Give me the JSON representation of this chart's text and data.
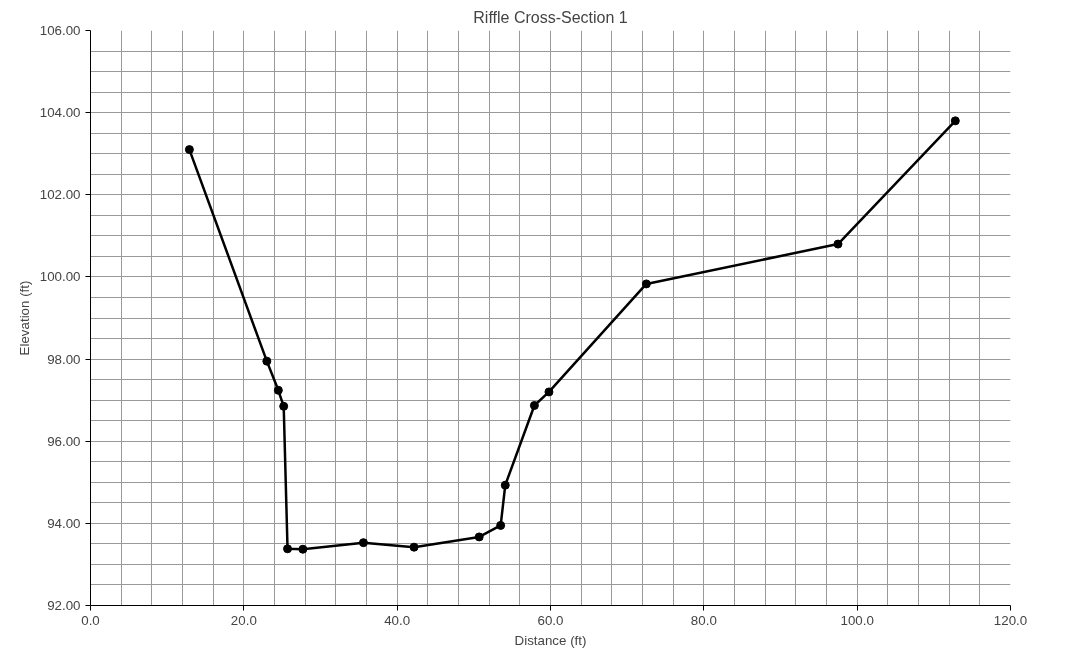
{
  "chart_data": {
    "type": "line",
    "title": "Riffle Cross-Section 1",
    "xlabel": "Distance (ft)",
    "ylabel": "Elevation (ft)",
    "x": [
      12.9,
      23.0,
      24.5,
      25.2,
      25.7,
      27.7,
      35.6,
      42.2,
      50.7,
      53.5,
      54.1,
      57.9,
      59.8,
      72.5,
      97.5,
      112.8
    ],
    "series": [
      {
        "color": "#000000",
        "values": [
          103.1,
          97.95,
          97.24,
          96.85,
          93.38,
          93.37,
          93.53,
          93.42,
          93.67,
          93.95,
          94.93,
          96.87,
          97.2,
          99.83,
          100.8,
          103.8
        ]
      }
    ],
    "xlim": [
      0,
      120
    ],
    "ylim": [
      92,
      106
    ],
    "xticks": [
      {
        "value": 0,
        "label": "0.0"
      },
      {
        "value": 4,
        "label": null
      },
      {
        "value": 8,
        "label": null
      },
      {
        "value": 12,
        "label": null
      },
      {
        "value": 16,
        "label": null
      },
      {
        "value": 20,
        "label": "20.0"
      },
      {
        "value": 24,
        "label": null
      },
      {
        "value": 28,
        "label": null
      },
      {
        "value": 32,
        "label": null
      },
      {
        "value": 36,
        "label": null
      },
      {
        "value": 40,
        "label": "40.0"
      },
      {
        "value": 44,
        "label": null
      },
      {
        "value": 48,
        "label": null
      },
      {
        "value": 52,
        "label": null
      },
      {
        "value": 56,
        "label": null
      },
      {
        "value": 60,
        "label": "60.0"
      },
      {
        "value": 64,
        "label": null
      },
      {
        "value": 68,
        "label": null
      },
      {
        "value": 72,
        "label": null
      },
      {
        "value": 76,
        "label": null
      },
      {
        "value": 80,
        "label": "80.0"
      },
      {
        "value": 84,
        "label": null
      },
      {
        "value": 88,
        "label": null
      },
      {
        "value": 92,
        "label": null
      },
      {
        "value": 96,
        "label": null
      },
      {
        "value": 100,
        "label": "100.0"
      },
      {
        "value": 104,
        "label": null
      },
      {
        "value": 108,
        "label": null
      },
      {
        "value": 112,
        "label": null
      },
      {
        "value": 116,
        "label": null
      },
      {
        "value": 120,
        "label": "120.0"
      }
    ],
    "yticks": [
      {
        "value": 92,
        "label": "92.00"
      },
      {
        "value": 92.5,
        "label": null
      },
      {
        "value": 93,
        "label": null
      },
      {
        "value": 93.5,
        "label": null
      },
      {
        "value": 94,
        "label": "94.00"
      },
      {
        "value": 94.5,
        "label": null
      },
      {
        "value": 95,
        "label": null
      },
      {
        "value": 95.5,
        "label": null
      },
      {
        "value": 96,
        "label": "96.00"
      },
      {
        "value": 96.5,
        "label": null
      },
      {
        "value": 97,
        "label": null
      },
      {
        "value": 97.5,
        "label": null
      },
      {
        "value": 98,
        "label": "98.00"
      },
      {
        "value": 98.5,
        "label": null
      },
      {
        "value": 99,
        "label": null
      },
      {
        "value": 99.5,
        "label": null
      },
      {
        "value": 100,
        "label": "100.00"
      },
      {
        "value": 100.5,
        "label": null
      },
      {
        "value": 101,
        "label": null
      },
      {
        "value": 101.5,
        "label": null
      },
      {
        "value": 102,
        "label": "102.00"
      },
      {
        "value": 102.5,
        "label": null
      },
      {
        "value": 103,
        "label": null
      },
      {
        "value": 103.5,
        "label": null
      },
      {
        "value": 104,
        "label": "104.00"
      },
      {
        "value": 104.5,
        "label": null
      },
      {
        "value": 105,
        "label": null
      },
      {
        "value": 105.5,
        "label": null
      },
      {
        "value": 106,
        "label": "106.00"
      }
    ],
    "grid": true,
    "marker": "circle",
    "line_style": "solid"
  }
}
